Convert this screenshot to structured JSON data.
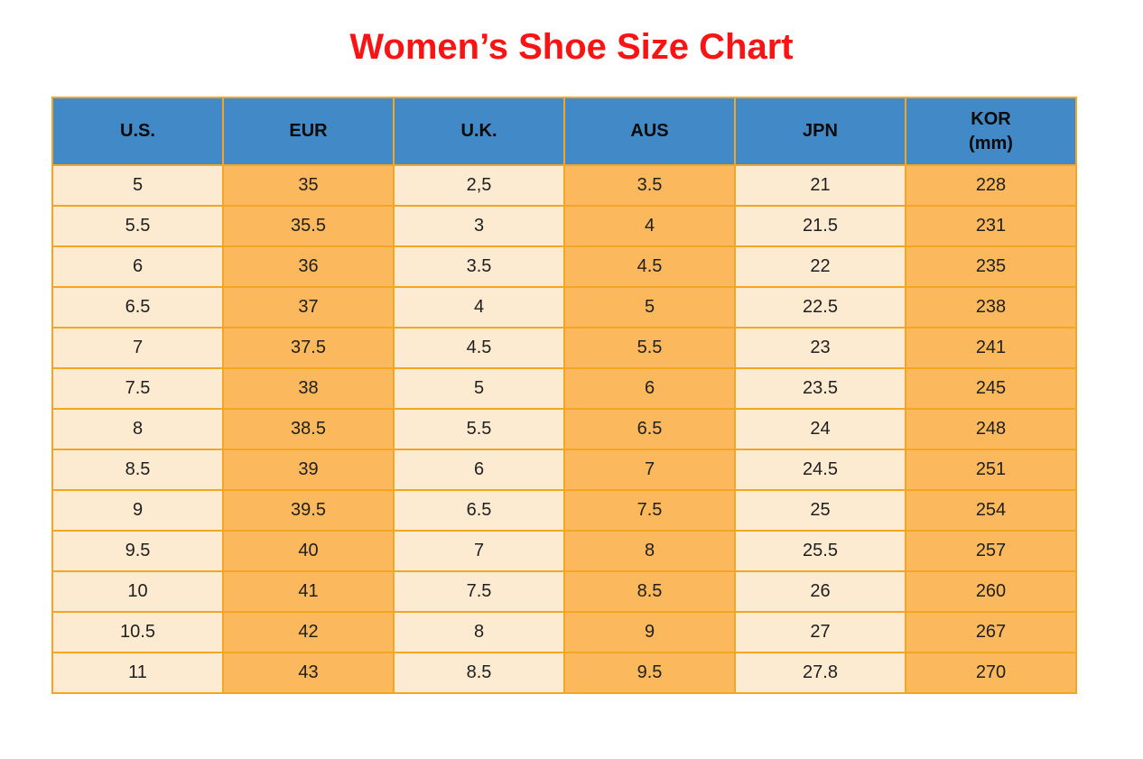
{
  "title": "Women’s Shoe Size Chart",
  "colors": {
    "title_red": "#f81414",
    "header_blue": "#4189C7",
    "cell_cream": "#FDEBD1",
    "cell_orange": "#FBB85C",
    "border_orange": "#F2A624"
  },
  "chart_data": {
    "type": "table",
    "title": "Women’s Shoe Size Chart",
    "columns": [
      "U.S.",
      "EUR",
      "U.K.",
      "AUS",
      "JPN",
      "KOR (mm)"
    ],
    "header_labels": [
      {
        "label": "U.S."
      },
      {
        "label": "EUR"
      },
      {
        "label": "U.K."
      },
      {
        "label": "AUS"
      },
      {
        "label": "JPN"
      },
      {
        "label": "KOR",
        "sub": "(mm)"
      }
    ],
    "rows": [
      [
        "5",
        "35",
        "2,5",
        "3.5",
        "21",
        "228"
      ],
      [
        "5.5",
        "35.5",
        "3",
        "4",
        "21.5",
        "231"
      ],
      [
        "6",
        "36",
        "3.5",
        "4.5",
        "22",
        "235"
      ],
      [
        "6.5",
        "37",
        "4",
        "5",
        "22.5",
        "238"
      ],
      [
        "7",
        "37.5",
        "4.5",
        "5.5",
        "23",
        "241"
      ],
      [
        "7.5",
        "38",
        "5",
        "6",
        "23.5",
        "245"
      ],
      [
        "8",
        "38.5",
        "5.5",
        "6.5",
        "24",
        "248"
      ],
      [
        "8.5",
        "39",
        "6",
        "7",
        "24.5",
        "251"
      ],
      [
        "9",
        "39.5",
        "6.5",
        "7.5",
        "25",
        "254"
      ],
      [
        "9.5",
        "40",
        "7",
        "8",
        "25.5",
        "257"
      ],
      [
        "10",
        "41",
        "7.5",
        "8.5",
        "26",
        "260"
      ],
      [
        "10.5",
        "42",
        "8",
        "9",
        "27",
        "267"
      ],
      [
        "11",
        "43",
        "8.5",
        "9.5",
        "27.8",
        "270"
      ]
    ]
  }
}
